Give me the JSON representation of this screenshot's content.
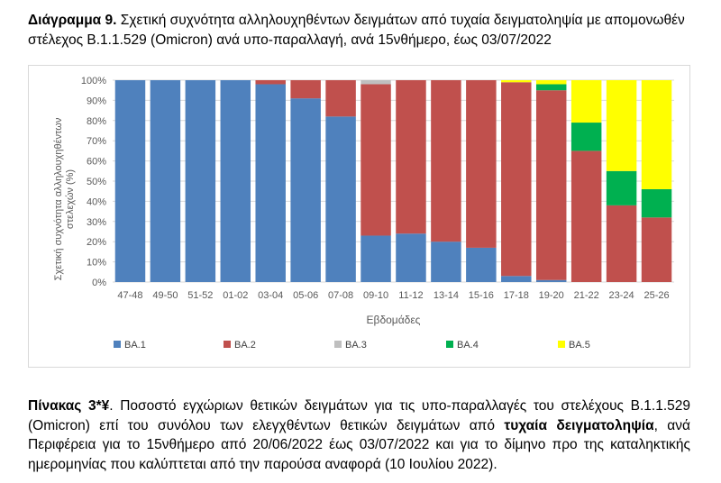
{
  "caption": {
    "label": "Διάγραμμα 9.",
    "text": " Σχετική συχνότητα αλληλουχηθέντων δειγμάτων από τυχαία δειγματοληψία με απομονωθέν στέλεχος Β.1.1.529 (Omicron) ανά υπο-παραλλαγή, ανά 15νθήμερο, έως 03/07/2022"
  },
  "chart_data": {
    "type": "bar",
    "stacked": true,
    "percent": true,
    "categories": [
      "47-48",
      "49-50",
      "51-52",
      "01-02",
      "03-04",
      "05-06",
      "07-08",
      "09-10",
      "11-12",
      "13-14",
      "15-16",
      "17-18",
      "19-20",
      "21-22",
      "23-24",
      "25-26"
    ],
    "series": [
      {
        "name": "BA.1",
        "color": "#4f81bd",
        "values": [
          100,
          100,
          100,
          100,
          98,
          91,
          82,
          23,
          24,
          20,
          17,
          3,
          1,
          0,
          0,
          0
        ]
      },
      {
        "name": "BA.2",
        "color": "#c0504d",
        "values": [
          0,
          0,
          0,
          0,
          2,
          9,
          18,
          75,
          76,
          80,
          83,
          96,
          94,
          65,
          38,
          32
        ]
      },
      {
        "name": "BA.3",
        "color": "#bfbfbf",
        "values": [
          0,
          0,
          0,
          0,
          0,
          0,
          0,
          2,
          0,
          0,
          0,
          0,
          0,
          0,
          0,
          0
        ]
      },
      {
        "name": "BA.4",
        "color": "#00b050",
        "values": [
          0,
          0,
          0,
          0,
          0,
          0,
          0,
          0,
          0,
          0,
          0,
          0,
          3,
          14,
          17,
          14
        ]
      },
      {
        "name": "BA.5",
        "color": "#ffff00",
        "values": [
          0,
          0,
          0,
          0,
          0,
          0,
          0,
          0,
          0,
          0,
          0,
          1,
          2,
          21,
          45,
          54
        ]
      }
    ],
    "ylabel": "Σχετική συχνότητα αλληλουχηθέντων στελεχών (%)",
    "xlabel": "Εβδομάδες",
    "ylim": [
      0,
      100
    ],
    "yticks": [
      "0%",
      "10%",
      "20%",
      "30%",
      "40%",
      "50%",
      "60%",
      "70%",
      "80%",
      "90%",
      "100%"
    ],
    "grid": true,
    "legend": "bottom"
  },
  "table_caption": {
    "label": "Πίνακας 3*¥",
    "text1": ". Ποσοστό εγχώριων θετικών δειγμάτων για τις υπο-παραλλαγές του στελέχους Β.1.1.529 (Omicron) επί του συνόλου των ελεγχθέντων θετικών δειγμάτων από ",
    "bold": "τυχαία δειγματοληψία",
    "text2": ", ανά Περιφέρεια για το 15νθήμερο από 20/06/2022 έως 03/07/2022 και για το δίμηνο προ της καταληκτικής ημερομηνίας που καλύπτεται από την παρούσα αναφορά (10 Ιουλίου 2022)."
  }
}
